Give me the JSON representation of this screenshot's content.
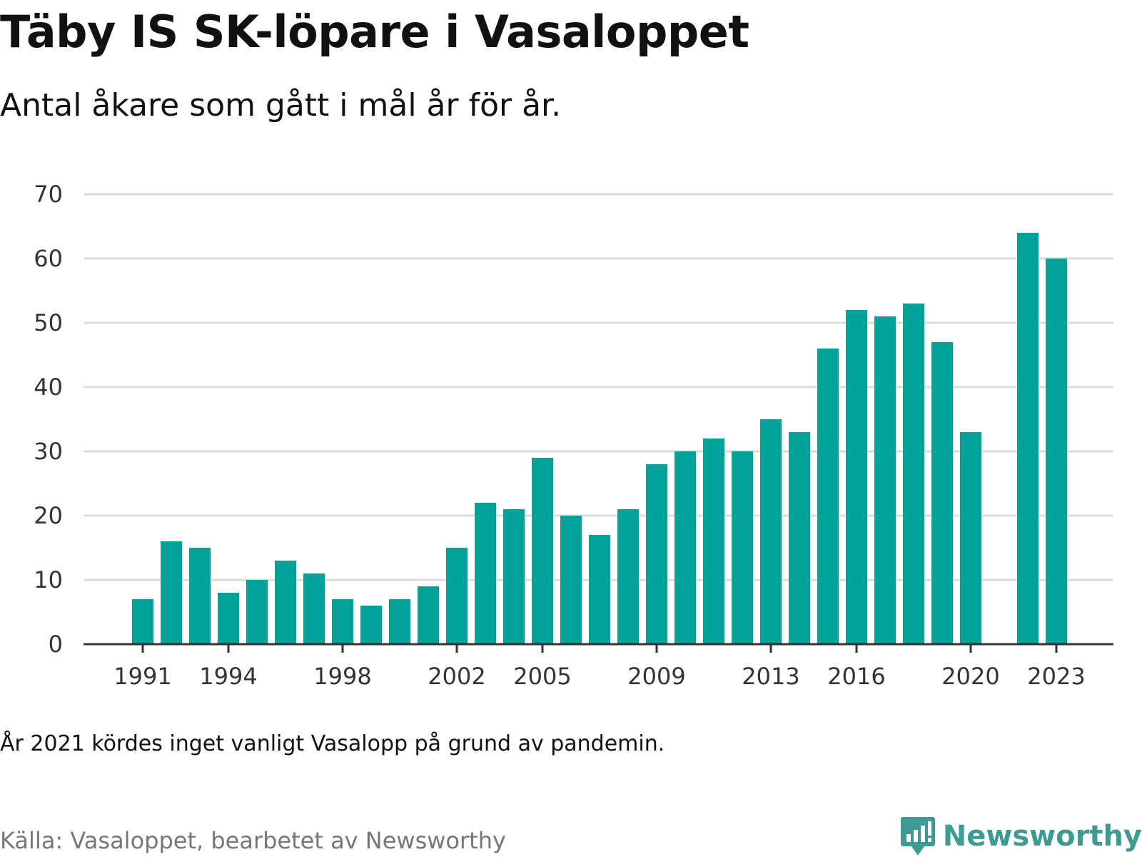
{
  "chart_data": {
    "type": "bar",
    "title": "Täby IS SK-löpare i Vasaloppet",
    "subtitle": "Antal åkare som gått i mål år för år.",
    "categories": [
      "1991",
      "1992",
      "1993",
      "1994",
      "1995",
      "1996",
      "1997",
      "1998",
      "1999",
      "2000",
      "2001",
      "2002",
      "2003",
      "2004",
      "2005",
      "2006",
      "2007",
      "2008",
      "2009",
      "2010",
      "2011",
      "2012",
      "2013",
      "2014",
      "2015",
      "2016",
      "2017",
      "2018",
      "2019",
      "2020",
      "2021",
      "2022",
      "2023"
    ],
    "values": [
      7,
      16,
      15,
      8,
      10,
      13,
      11,
      7,
      6,
      7,
      9,
      15,
      22,
      21,
      29,
      20,
      17,
      21,
      28,
      30,
      32,
      30,
      35,
      33,
      46,
      52,
      51,
      53,
      47,
      33,
      null,
      64,
      60
    ],
    "x_tick_labels": [
      "1991",
      "1994",
      "1998",
      "2002",
      "2005",
      "2009",
      "2013",
      "2016",
      "2020",
      "2023"
    ],
    "y_tick_labels": [
      "0",
      "10",
      "20",
      "30",
      "40",
      "50",
      "60",
      "70"
    ],
    "ylim": [
      0,
      70
    ],
    "xlabel": "",
    "ylabel": "",
    "grid": true,
    "bar_color": "#00a39a"
  },
  "note": "År 2021 kördes inget vanligt Vasalopp på grund av pandemin.",
  "source": "Källa: Vasaloppet, bearbetet av Newsworthy",
  "brand": {
    "name": "Newsworthy",
    "color": "#3c9c94"
  }
}
